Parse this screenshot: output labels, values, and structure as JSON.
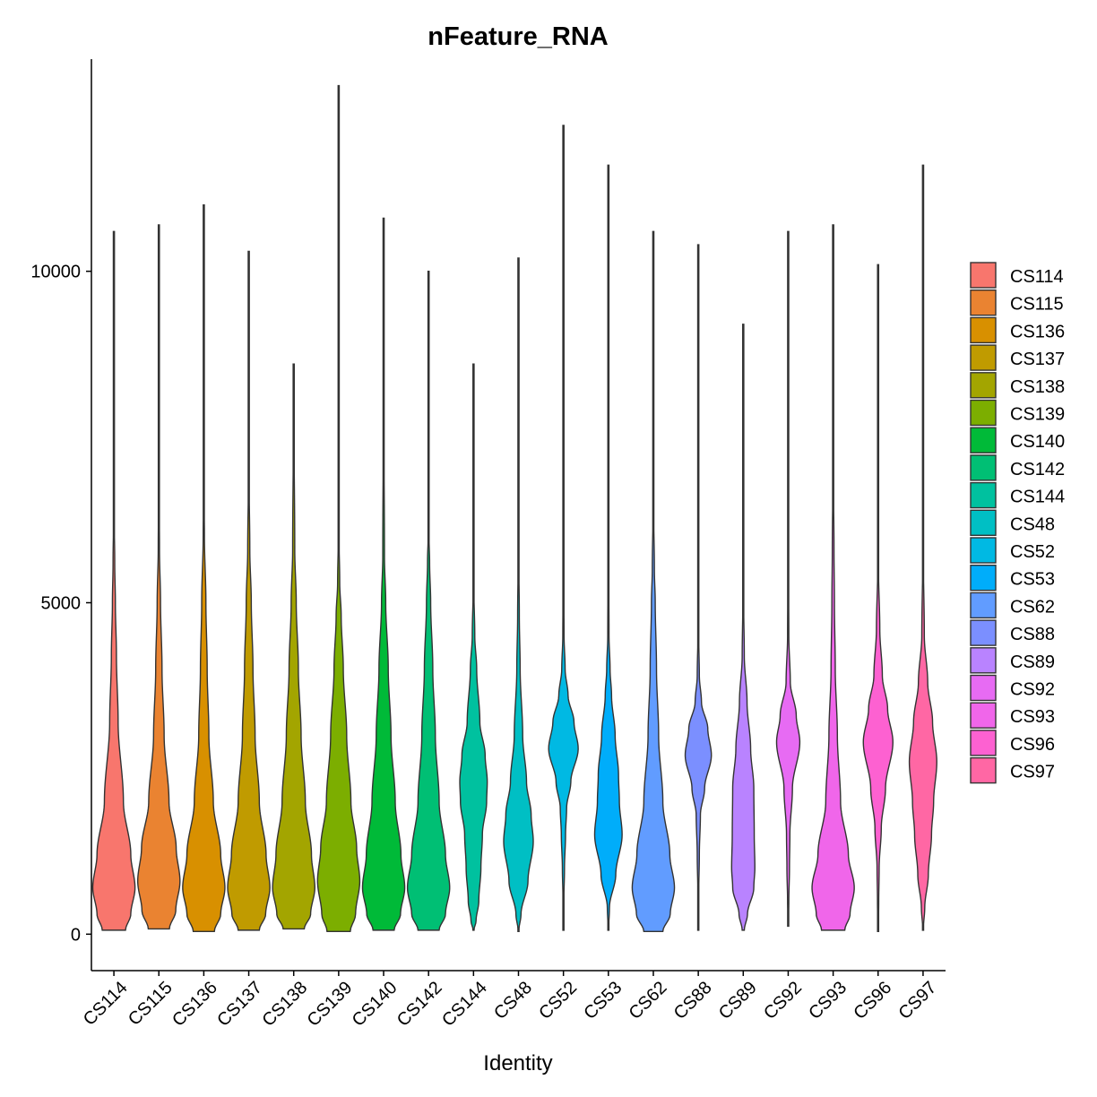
{
  "chart_data": {
    "type": "violin",
    "title": "nFeature_RNA",
    "xlabel": "Identity",
    "ylabel": "",
    "ylim": [
      -550,
      13200
    ],
    "y_ticks": [
      0,
      5000,
      10000
    ],
    "y_tick_labels": [
      "0",
      "5000",
      "10000"
    ],
    "legend_position": "right",
    "categories": [
      "CS114",
      "CS115",
      "CS136",
      "CS137",
      "CS138",
      "CS139",
      "CS140",
      "CS142",
      "CS144",
      "CS48",
      "CS52",
      "CS53",
      "CS62",
      "CS88",
      "CS89",
      "CS92",
      "CS93",
      "CS96",
      "CS97"
    ],
    "series": [
      {
        "name": "CS114",
        "color": "#F8766D",
        "min": 60,
        "max": 10600,
        "peak": 750,
        "profile": [
          [
            60,
            0.55
          ],
          [
            300,
            0.8
          ],
          [
            700,
            1.0
          ],
          [
            1200,
            0.8
          ],
          [
            2000,
            0.45
          ],
          [
            3200,
            0.2
          ],
          [
            4200,
            0.12
          ],
          [
            5000,
            0.07
          ],
          [
            5600,
            0.04
          ],
          [
            6400,
            0.01
          ],
          [
            10600,
            0
          ]
        ]
      },
      {
        "name": "CS115",
        "color": "#EA8331",
        "min": 80,
        "max": 10700,
        "peak": 800,
        "profile": [
          [
            80,
            0.5
          ],
          [
            350,
            0.8
          ],
          [
            800,
            1.0
          ],
          [
            1300,
            0.82
          ],
          [
            2000,
            0.48
          ],
          [
            3000,
            0.25
          ],
          [
            4000,
            0.15
          ],
          [
            5000,
            0.08
          ],
          [
            5800,
            0.03
          ],
          [
            6800,
            0.01
          ],
          [
            10700,
            0
          ]
        ]
      },
      {
        "name": "CS136",
        "color": "#D89000",
        "min": 40,
        "max": 11000,
        "peak": 700,
        "profile": [
          [
            40,
            0.5
          ],
          [
            300,
            0.8
          ],
          [
            700,
            1.0
          ],
          [
            1200,
            0.8
          ],
          [
            2000,
            0.45
          ],
          [
            3000,
            0.24
          ],
          [
            4000,
            0.16
          ],
          [
            5000,
            0.1
          ],
          [
            6000,
            0.03
          ],
          [
            6800,
            0.01
          ],
          [
            11000,
            0
          ]
        ]
      },
      {
        "name": "CS137",
        "color": "#C09B00",
        "min": 60,
        "max": 10300,
        "peak": 700,
        "profile": [
          [
            60,
            0.5
          ],
          [
            300,
            0.8
          ],
          [
            700,
            1.0
          ],
          [
            1200,
            0.82
          ],
          [
            2000,
            0.5
          ],
          [
            3000,
            0.3
          ],
          [
            4000,
            0.2
          ],
          [
            5000,
            0.12
          ],
          [
            5800,
            0.05
          ],
          [
            7000,
            0.01
          ],
          [
            10300,
            0
          ]
        ]
      },
      {
        "name": "CS138",
        "color": "#A3A500",
        "min": 80,
        "max": 8600,
        "peak": 750,
        "profile": [
          [
            80,
            0.5
          ],
          [
            300,
            0.8
          ],
          [
            700,
            1.0
          ],
          [
            1200,
            0.84
          ],
          [
            2000,
            0.55
          ],
          [
            3000,
            0.35
          ],
          [
            4000,
            0.22
          ],
          [
            5000,
            0.12
          ],
          [
            5800,
            0.05
          ],
          [
            7800,
            0.01
          ],
          [
            8600,
            0
          ]
        ]
      },
      {
        "name": "CS139",
        "color": "#7CAE00",
        "min": 40,
        "max": 12800,
        "peak": 800,
        "profile": [
          [
            40,
            0.55
          ],
          [
            300,
            0.8
          ],
          [
            800,
            1.0
          ],
          [
            1300,
            0.85
          ],
          [
            2000,
            0.58
          ],
          [
            3000,
            0.38
          ],
          [
            4000,
            0.22
          ],
          [
            4800,
            0.12
          ],
          [
            5300,
            0.05
          ],
          [
            6100,
            0.01
          ],
          [
            12800,
            0
          ]
        ]
      },
      {
        "name": "CS140",
        "color": "#00BA38",
        "min": 60,
        "max": 10800,
        "peak": 700,
        "profile": [
          [
            60,
            0.5
          ],
          [
            300,
            0.8
          ],
          [
            700,
            1.0
          ],
          [
            1200,
            0.82
          ],
          [
            2000,
            0.55
          ],
          [
            3000,
            0.35
          ],
          [
            4000,
            0.22
          ],
          [
            5000,
            0.1
          ],
          [
            5700,
            0.04
          ],
          [
            8000,
            0.01
          ],
          [
            10800,
            0
          ]
        ]
      },
      {
        "name": "CS142",
        "color": "#00BF74",
        "min": 60,
        "max": 10000,
        "peak": 700,
        "profile": [
          [
            60,
            0.5
          ],
          [
            300,
            0.8
          ],
          [
            700,
            1.0
          ],
          [
            1200,
            0.8
          ],
          [
            2000,
            0.5
          ],
          [
            3000,
            0.32
          ],
          [
            4000,
            0.2
          ],
          [
            5000,
            0.1
          ],
          [
            5600,
            0.05
          ],
          [
            6100,
            0.01
          ],
          [
            10000,
            0
          ]
        ]
      },
      {
        "name": "CS144",
        "color": "#00C19F",
        "min": 60,
        "max": 8600,
        "peak": 2300,
        "profile": [
          [
            60,
            0.02
          ],
          [
            200,
            0.12
          ],
          [
            500,
            0.25
          ],
          [
            1000,
            0.35
          ],
          [
            1500,
            0.42
          ],
          [
            2000,
            0.62
          ],
          [
            2300,
            0.65
          ],
          [
            2700,
            0.55
          ],
          [
            3200,
            0.3
          ],
          [
            4000,
            0.15
          ],
          [
            4500,
            0.06
          ],
          [
            5300,
            0.01
          ],
          [
            8600,
            0
          ]
        ]
      },
      {
        "name": "CS48",
        "color": "#00BFC4",
        "min": 40,
        "max": 10200,
        "peak": 1400,
        "profile": [
          [
            40,
            0.01
          ],
          [
            300,
            0.12
          ],
          [
            800,
            0.45
          ],
          [
            1400,
            0.7
          ],
          [
            1800,
            0.6
          ],
          [
            2300,
            0.38
          ],
          [
            3000,
            0.2
          ],
          [
            4000,
            0.08
          ],
          [
            4800,
            0.04
          ],
          [
            5800,
            0.01
          ],
          [
            10200,
            0
          ]
        ]
      },
      {
        "name": "CS52",
        "color": "#00B9E3",
        "min": 60,
        "max": 12200,
        "peak": 2800,
        "profile": [
          [
            60,
            0.01
          ],
          [
            500,
            0.02
          ],
          [
            1000,
            0.05
          ],
          [
            1500,
            0.1
          ],
          [
            1900,
            0.15
          ],
          [
            2300,
            0.35
          ],
          [
            2800,
            0.7
          ],
          [
            3200,
            0.5
          ],
          [
            3600,
            0.22
          ],
          [
            4000,
            0.08
          ],
          [
            4500,
            0.03
          ],
          [
            5500,
            0.01
          ],
          [
            12200,
            0
          ]
        ]
      },
      {
        "name": "CS53",
        "color": "#00ADFA",
        "min": 60,
        "max": 11600,
        "peak": 1500,
        "profile": [
          [
            60,
            0.01
          ],
          [
            400,
            0.05
          ],
          [
            900,
            0.35
          ],
          [
            1500,
            0.65
          ],
          [
            2000,
            0.52
          ],
          [
            2400,
            0.48
          ],
          [
            3000,
            0.32
          ],
          [
            3600,
            0.15
          ],
          [
            4000,
            0.08
          ],
          [
            4500,
            0.03
          ],
          [
            6000,
            0.01
          ],
          [
            11600,
            0
          ]
        ]
      },
      {
        "name": "CS62",
        "color": "#619CFF",
        "min": 40,
        "max": 10600,
        "peak": 700,
        "profile": [
          [
            40,
            0.45
          ],
          [
            300,
            0.8
          ],
          [
            700,
            1.0
          ],
          [
            1200,
            0.78
          ],
          [
            2000,
            0.45
          ],
          [
            3000,
            0.25
          ],
          [
            4000,
            0.15
          ],
          [
            5000,
            0.09
          ],
          [
            5500,
            0.05
          ],
          [
            6500,
            0.01
          ],
          [
            10600,
            0
          ]
        ]
      },
      {
        "name": "CS88",
        "color": "#7B8FFF",
        "min": 60,
        "max": 10400,
        "peak": 2700,
        "profile": [
          [
            60,
            0.01
          ],
          [
            600,
            0.02
          ],
          [
            1200,
            0.05
          ],
          [
            1800,
            0.1
          ],
          [
            2200,
            0.3
          ],
          [
            2700,
            0.62
          ],
          [
            3100,
            0.45
          ],
          [
            3500,
            0.15
          ],
          [
            3900,
            0.05
          ],
          [
            4500,
            0.02
          ],
          [
            7000,
            0.01
          ],
          [
            10400,
            0
          ]
        ]
      },
      {
        "name": "CS89",
        "color": "#B983FF",
        "min": 60,
        "max": 9200,
        "peak": 1000,
        "profile": [
          [
            60,
            0.05
          ],
          [
            300,
            0.2
          ],
          [
            700,
            0.5
          ],
          [
            1000,
            0.55
          ],
          [
            1500,
            0.52
          ],
          [
            2200,
            0.5
          ],
          [
            2800,
            0.35
          ],
          [
            3500,
            0.18
          ],
          [
            4200,
            0.05
          ],
          [
            5000,
            0.02
          ],
          [
            6000,
            0.01
          ],
          [
            9200,
            0
          ]
        ]
      },
      {
        "name": "CS92",
        "color": "#E76BF3",
        "min": 120,
        "max": 10600,
        "peak": 2900,
        "profile": [
          [
            120,
            0.01
          ],
          [
            500,
            0.03
          ],
          [
            1000,
            0.06
          ],
          [
            1500,
            0.08
          ],
          [
            2200,
            0.2
          ],
          [
            2900,
            0.55
          ],
          [
            3300,
            0.38
          ],
          [
            3800,
            0.1
          ],
          [
            4500,
            0.03
          ],
          [
            5800,
            0.01
          ],
          [
            10600,
            0
          ]
        ]
      },
      {
        "name": "CS93",
        "color": "#F066EA",
        "min": 60,
        "max": 10700,
        "peak": 700,
        "profile": [
          [
            60,
            0.55
          ],
          [
            300,
            0.8
          ],
          [
            700,
            1.0
          ],
          [
            1200,
            0.72
          ],
          [
            2000,
            0.35
          ],
          [
            3000,
            0.2
          ],
          [
            4000,
            0.1
          ],
          [
            5000,
            0.06
          ],
          [
            5800,
            0.04
          ],
          [
            7000,
            0.01
          ],
          [
            10700,
            0
          ]
        ]
      },
      {
        "name": "CS96",
        "color": "#FD61D1",
        "min": 40,
        "max": 10100,
        "peak": 2900,
        "profile": [
          [
            40,
            0.01
          ],
          [
            500,
            0.03
          ],
          [
            1000,
            0.05
          ],
          [
            1600,
            0.15
          ],
          [
            2200,
            0.35
          ],
          [
            2900,
            0.7
          ],
          [
            3400,
            0.45
          ],
          [
            3900,
            0.2
          ],
          [
            4600,
            0.08
          ],
          [
            5500,
            0.02
          ],
          [
            10100,
            0
          ]
        ]
      },
      {
        "name": "CS97",
        "color": "#FF67A4",
        "min": 60,
        "max": 11600,
        "peak": 2600,
        "profile": [
          [
            60,
            0.01
          ],
          [
            400,
            0.08
          ],
          [
            900,
            0.25
          ],
          [
            1500,
            0.4
          ],
          [
            2000,
            0.5
          ],
          [
            2600,
            0.65
          ],
          [
            3200,
            0.45
          ],
          [
            3800,
            0.22
          ],
          [
            4500,
            0.06
          ],
          [
            5800,
            0.01
          ],
          [
            11600,
            0
          ]
        ]
      }
    ]
  }
}
